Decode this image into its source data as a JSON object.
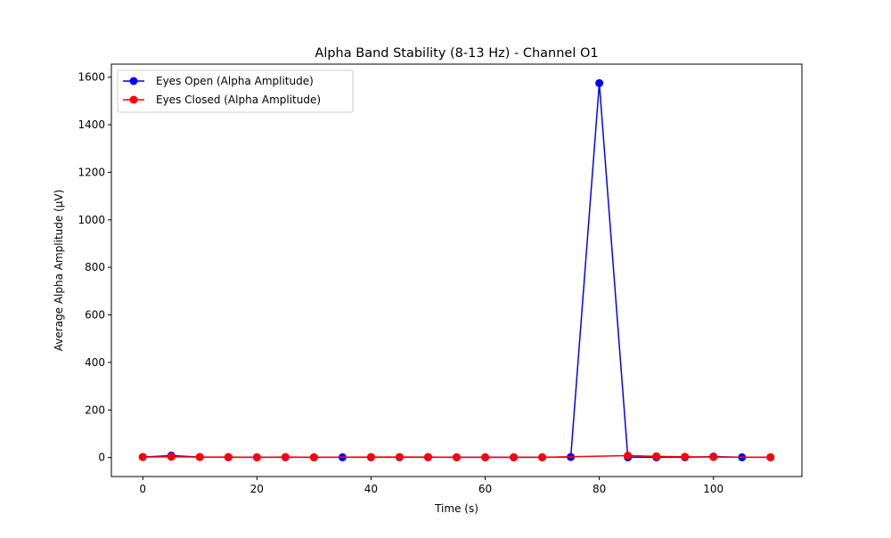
{
  "chart_data": {
    "type": "line",
    "title": "Alpha Band Stability (8-13 Hz) - Channel O1",
    "xlabel": "Time (s)",
    "ylabel": "Average Alpha Amplitude (µV)",
    "xlim": [
      -5.5,
      115.5
    ],
    "ylim": [
      -80,
      1655
    ],
    "xticks": [
      0,
      20,
      40,
      60,
      80,
      100
    ],
    "yticks": [
      0,
      200,
      400,
      600,
      800,
      1000,
      1200,
      1400,
      1600
    ],
    "grid": false,
    "legend_position": "top-left",
    "series": [
      {
        "name": "Eyes Open (Alpha Amplitude)",
        "color": "#0000ff",
        "x": [
          0,
          5,
          10,
          15,
          20,
          25,
          30,
          35,
          40,
          45,
          50,
          55,
          60,
          65,
          70,
          75,
          80,
          85,
          90,
          95,
          100,
          105,
          110
        ],
        "y": [
          2,
          8,
          2,
          1,
          1,
          1,
          1,
          1,
          1,
          1,
          1,
          1,
          1,
          1,
          1,
          2,
          1575,
          1,
          1,
          1,
          4,
          1,
          1
        ]
      },
      {
        "name": "Eyes Closed (Alpha Amplitude)",
        "color": "#ff0000",
        "x": [
          0,
          5,
          10,
          15,
          20,
          25,
          30,
          40,
          45,
          50,
          55,
          60,
          65,
          70,
          85,
          90,
          95,
          100,
          110
        ],
        "y": [
          2,
          3,
          2,
          2,
          1,
          2,
          1,
          2,
          2,
          2,
          1,
          1,
          1,
          1,
          8,
          5,
          3,
          2,
          1
        ]
      }
    ]
  }
}
